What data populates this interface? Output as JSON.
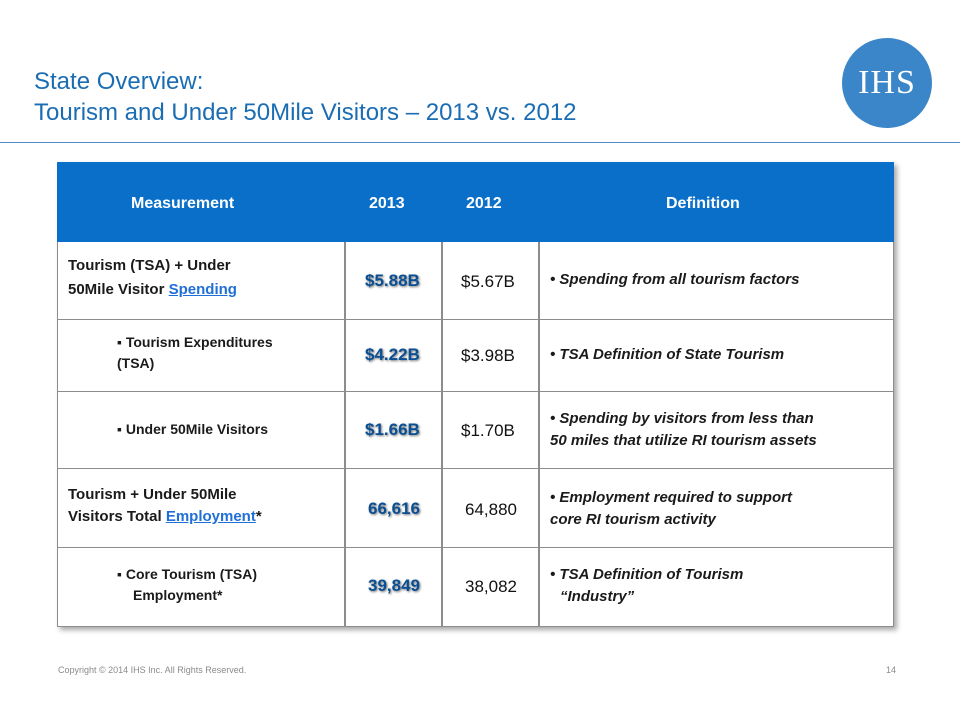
{
  "title": {
    "line1": "State Overview:",
    "line2": "Tourism and Under 50Mile Visitors – 2013 vs. 2012"
  },
  "logo": {
    "text": "IHS"
  },
  "table": {
    "headers": [
      "Measurement",
      "2013",
      "2012",
      "Definition"
    ],
    "rows": [
      {
        "m1": "Tourism (TSA) + Under",
        "m2": "50Mile Visitor ",
        "link": "Spending",
        "v2013": "$5.88B",
        "v2012": "$5.67B",
        "def1": "• Spending from all tourism factors",
        "def2": ""
      },
      {
        "m1": "▪  Tourism Expenditures",
        "m2": "(TSA)",
        "v2013": "$4.22B",
        "v2012": "$3.98B",
        "def1": "• TSA Definition of State Tourism",
        "def2": ""
      },
      {
        "m1": "▪ Under 50Mile Visitors",
        "v2013": "$1.66B",
        "v2012": "$1.70B",
        "def1": "• Spending by visitors from less than",
        "def2": "50 miles that utilize RI tourism assets"
      },
      {
        "m1": "Tourism + Under 50Mile",
        "m2": "Visitors Total ",
        "link": "Employment",
        "suffix": "*",
        "v2013": "66,616",
        "v2012": "64,880",
        "def1": "• Employment required to support",
        "def2": "core RI tourism activity"
      },
      {
        "m1": "▪ Core Tourism (TSA)",
        "m2": "Employment*",
        "v2013": "39,849",
        "v2012": "38,082",
        "def1": "• TSA Definition of Tourism",
        "def2": "“Industry”"
      }
    ]
  },
  "footer": {
    "copyright": "Copyright © 2014 IHS Inc. All Rights Reserved.",
    "page": "14"
  },
  "colors": {
    "title": "#1b6db3",
    "header_bg": "#0a6fc9",
    "value_2013": "#0a4f93",
    "link": "#1f6fd6",
    "logo": "#3a86c8"
  }
}
